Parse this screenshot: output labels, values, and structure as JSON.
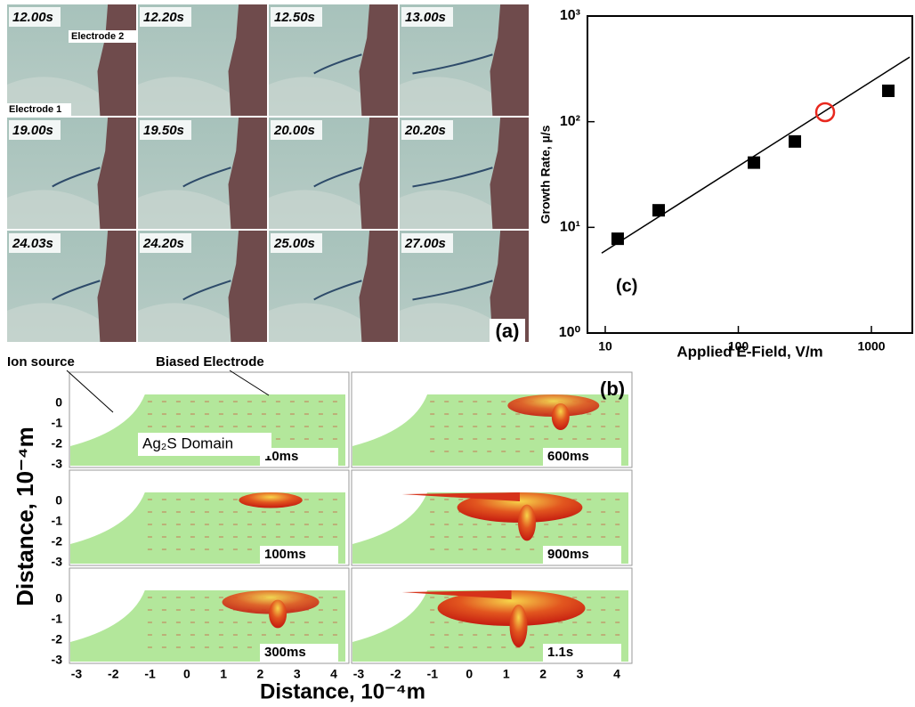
{
  "panel_a": {
    "label": "(a)",
    "frames": [
      "12.00s",
      "12.20s",
      "12.50s",
      "13.00s",
      "19.00s",
      "19.50s",
      "20.00s",
      "20.20s",
      "24.03s",
      "24.20s",
      "25.00s",
      "27.00s"
    ],
    "electrode_2": "Electrode 2",
    "electrode_1": "Electrode 1"
  },
  "chart_data": {
    "type": "scatter",
    "label": "(c)",
    "x_label": "Applied E-Field, V/m",
    "y_label": "Growth Rate, µ/s",
    "log_x": true,
    "log_y": true,
    "xlim": [
      7.35,
      2030
    ],
    "ylim": [
      1,
      1000
    ],
    "xticks": [
      10,
      100,
      1000
    ],
    "yticks": [
      {
        "value": 1,
        "label": "10⁰"
      },
      {
        "value": 10,
        "label": "10¹"
      },
      {
        "value": 100,
        "label": "10²"
      },
      {
        "value": 1000,
        "label": "10³"
      }
    ],
    "series": [
      {
        "color": "#000000",
        "x": [
          12.4,
          25.2,
          131,
          266,
          1340
        ],
        "values": [
          7.8,
          14.5,
          41,
          65,
          196
        ]
      }
    ],
    "highlight": {
      "color": "#e8281e",
      "x": 449,
      "value": 123
    },
    "fit": {
      "color": "#000000",
      "x": [
        9.4,
        1940
      ],
      "values": [
        5.7,
        409
      ]
    }
  },
  "panel_b": {
    "label": "(b)",
    "ion_source": "Ion source",
    "biased_electrode": "Biased Electrode",
    "domain": "Ag₂S Domain",
    "times": [
      "10ms",
      "600ms",
      "100ms",
      "900ms",
      "300ms",
      "1.1s"
    ],
    "xticks": [
      -3,
      -2,
      -1,
      0,
      1,
      2,
      3,
      4
    ],
    "yticks": [
      0,
      -1,
      -2,
      -3
    ],
    "x_label": "Distance, 10⁻⁴m",
    "y_label": "Distance, 10⁻⁴m"
  }
}
